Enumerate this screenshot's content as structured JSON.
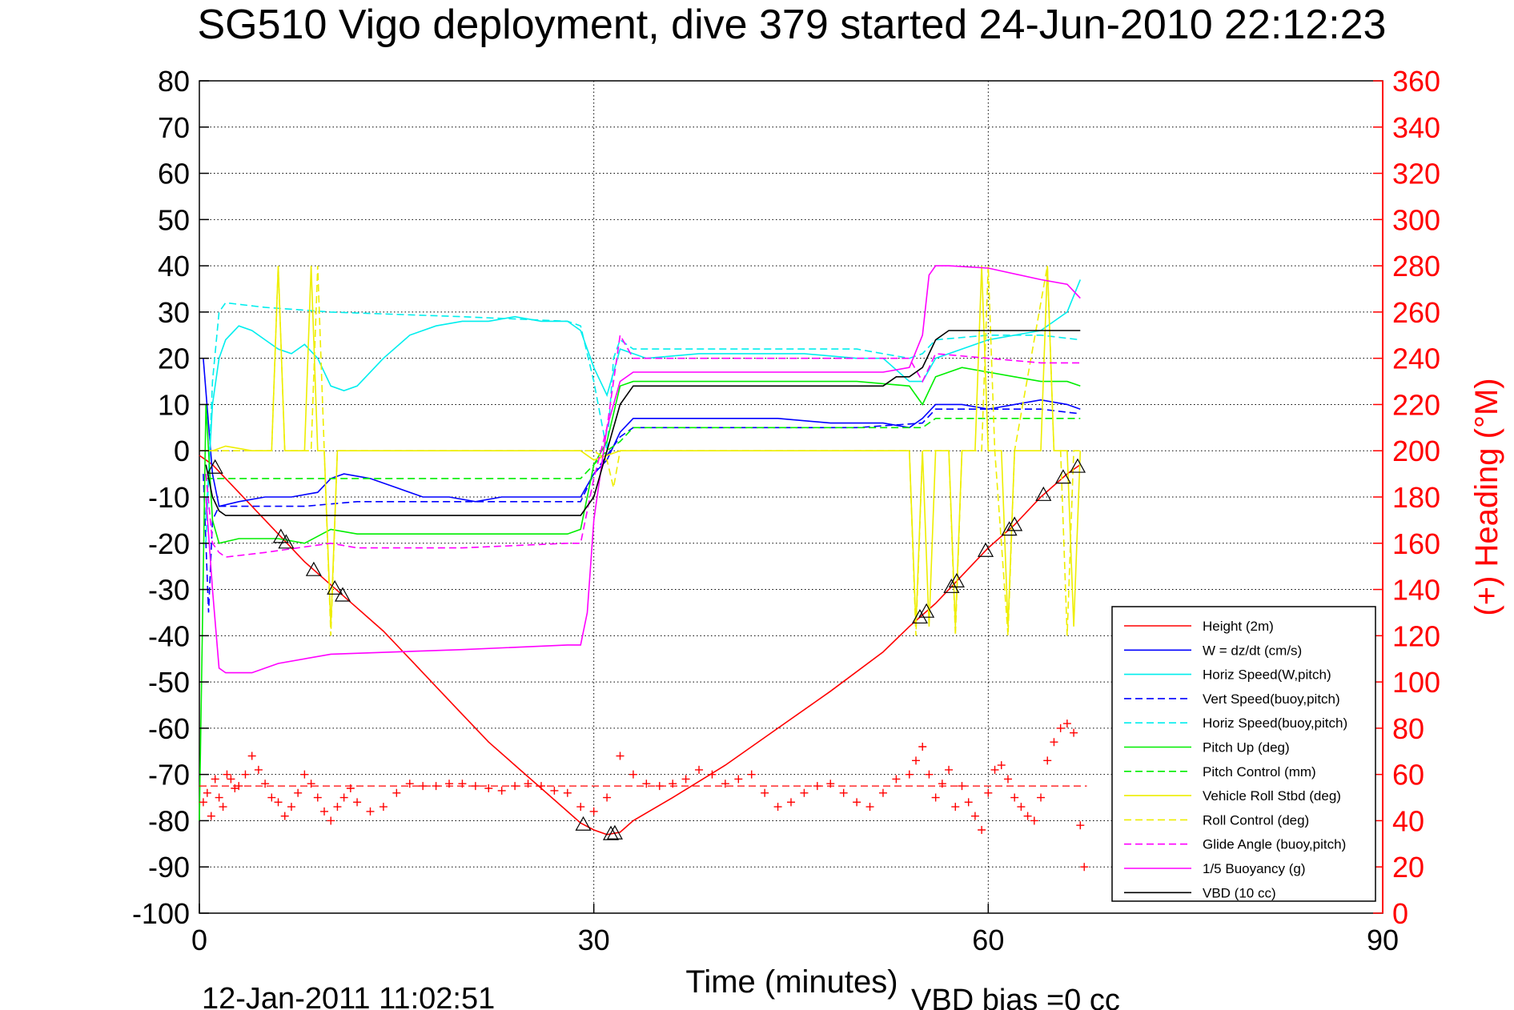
{
  "chart_data": {
    "type": "line",
    "title": "SG510 Vigo deployment, dive 379 started 24-Jun-2010 22:12:23",
    "xlabel": "Time (minutes)",
    "ylabel": "",
    "y2label": "(+) Heading (°M)",
    "xlim": [
      0,
      90
    ],
    "ylim": [
      -100,
      80
    ],
    "y2lim": [
      0,
      360
    ],
    "xticks": [
      0,
      30,
      60,
      90
    ],
    "yticks": [
      80,
      70,
      60,
      50,
      40,
      30,
      20,
      10,
      0,
      -10,
      -20,
      -30,
      -40,
      -50,
      -60,
      -70,
      -80,
      -90,
      -100
    ],
    "y2ticks": [
      360,
      340,
      320,
      300,
      280,
      260,
      240,
      220,
      200,
      180,
      160,
      140,
      120,
      100,
      80,
      60,
      40,
      20,
      0
    ],
    "grid": true,
    "legend_position": "bottom-right",
    "footer_left": "12-Jan-2011 11:02:51",
    "footer_right": "VBD bias =0 cc",
    "series": [
      {
        "name": "Height (2m)",
        "color": "#ff0000",
        "dash": "solid",
        "x": [
          0,
          1,
          2,
          4,
          6,
          8,
          10,
          12,
          14,
          16,
          18,
          20,
          22,
          24,
          26,
          28,
          29,
          30,
          31,
          32,
          33,
          36,
          40,
          44,
          48,
          52,
          54,
          56,
          58,
          60,
          62,
          64,
          66,
          67
        ],
        "y": [
          -1,
          -3,
          -6,
          -12,
          -18,
          -24,
          -29,
          -34,
          -39,
          -45,
          -51,
          -57,
          -63,
          -68,
          -73,
          -78,
          -80.5,
          -82,
          -83,
          -82.5,
          -80,
          -75,
          -68,
          -60,
          -52,
          -43.5,
          -38,
          -33,
          -27,
          -21,
          -16,
          -10,
          -5,
          -3
        ]
      },
      {
        "name": "W = dz/dt (cm/s)",
        "color": "#0000ff",
        "dash": "solid",
        "x": [
          0.3,
          1,
          1.5,
          3,
          5,
          7,
          9,
          10,
          11,
          13,
          15,
          17,
          19,
          21,
          23,
          25,
          27,
          29,
          30,
          31,
          32,
          33,
          36,
          40,
          44,
          48,
          52,
          54,
          55,
          56,
          58,
          60,
          62,
          64,
          66,
          67
        ],
        "y": [
          20,
          -5,
          -12,
          -11,
          -10,
          -10,
          -9,
          -6,
          -5,
          -6,
          -8,
          -10,
          -10,
          -11,
          -10,
          -10,
          -10,
          -10,
          -5,
          -2,
          4,
          7,
          7,
          7,
          7,
          6,
          6,
          5,
          7,
          10,
          10,
          9,
          10,
          11,
          10,
          9
        ]
      },
      {
        "name": "Horiz Speed(W,pitch)",
        "color": "#00eeee",
        "dash": "solid",
        "x": [
          0.5,
          1,
          1.5,
          2,
          3,
          4,
          5,
          6,
          7,
          8,
          9,
          10,
          11,
          12,
          14,
          16,
          18,
          20,
          22,
          24,
          26,
          28,
          29,
          30,
          31,
          32,
          34,
          38,
          42,
          46,
          50,
          52,
          54,
          55,
          56,
          58,
          60,
          62,
          64,
          66,
          67
        ],
        "y": [
          -15,
          10,
          20,
          24,
          27,
          26,
          24,
          22,
          21,
          23,
          20,
          14,
          13,
          14,
          20,
          25,
          27,
          28,
          28,
          29,
          28,
          28,
          26,
          18,
          12,
          22,
          20,
          21,
          21,
          21,
          20,
          20,
          15,
          15,
          20,
          22,
          24,
          25,
          26,
          30,
          37
        ]
      },
      {
        "name": "Vert Speed(buoy,pitch)",
        "color": "#0000ff",
        "dash": "dash",
        "x": [
          0.3,
          0.7,
          1,
          1.5,
          3,
          8,
          12,
          20,
          28,
          29,
          30,
          31,
          32,
          33,
          40,
          50,
          55,
          56,
          60,
          64,
          67
        ],
        "y": [
          -5,
          -35,
          -15,
          -12,
          -12,
          -12,
          -11,
          -11,
          -11,
          -11,
          -5,
          -1,
          3,
          5,
          5,
          5,
          6,
          9,
          9,
          9,
          8
        ]
      },
      {
        "name": "Horiz Speed(buoy,pitch)",
        "color": "#00eeee",
        "dash": "dash",
        "x": [
          0.5,
          1,
          1.5,
          2,
          5,
          10,
          20,
          28,
          29,
          30,
          31,
          31.5,
          32,
          33,
          40,
          50,
          54,
          55,
          56,
          60,
          64,
          67
        ],
        "y": [
          -20,
          15,
          30,
          32,
          31,
          30,
          29,
          28,
          27,
          15,
          0,
          20,
          24,
          22,
          22,
          22,
          20,
          21,
          24,
          25,
          25,
          24
        ]
      },
      {
        "name": "Pitch Up (deg)",
        "color": "#00ee00",
        "dash": "solid",
        "x": [
          0,
          0.5,
          1,
          1.5,
          3,
          6,
          8,
          10,
          12,
          20,
          28,
          29,
          30,
          31,
          32,
          33,
          40,
          50,
          54,
          55,
          56,
          58,
          60,
          62,
          64,
          66,
          67
        ],
        "y": [
          -80,
          10,
          -15,
          -20,
          -19,
          -19,
          -20,
          -17,
          -18,
          -18,
          -18,
          -17,
          -3,
          2,
          14,
          15,
          15,
          15,
          14,
          10,
          16,
          18,
          17,
          16,
          15,
          15,
          14
        ]
      },
      {
        "name": "Pitch Control (mm)",
        "color": "#00ee00",
        "dash": "dash",
        "x": [
          0.5,
          1,
          1.5,
          5,
          10,
          20,
          29,
          30,
          31,
          32,
          33,
          40,
          50,
          54,
          55,
          56,
          60,
          64,
          67
        ],
        "y": [
          -6,
          -6,
          -6,
          -6,
          -6,
          -6,
          -6,
          -3,
          0,
          2,
          5,
          5,
          5,
          5,
          5,
          7,
          7,
          7,
          7
        ]
      },
      {
        "name": "Vehicle Roll Stbd (deg)",
        "color": "#eeee00",
        "dash": "solid",
        "x": [
          0,
          1,
          2,
          4,
          5.5,
          6,
          6.5,
          7,
          8,
          8.5,
          9,
          9.5,
          10,
          10.5,
          11,
          12,
          20,
          29,
          30,
          32,
          40,
          50,
          54,
          54.5,
          55,
          55.5,
          56,
          57,
          57.5,
          58,
          59,
          59.5,
          60,
          61,
          61.5,
          62,
          63,
          64,
          64.5,
          65,
          66,
          66.5,
          67
        ],
        "y": [
          0,
          0,
          1,
          0,
          0,
          40,
          0,
          0,
          0,
          40,
          0,
          0,
          -38,
          0,
          0,
          0,
          0,
          0,
          -2,
          0,
          0,
          0,
          0,
          -38,
          0,
          -38,
          0,
          0,
          -38,
          0,
          0,
          40,
          0,
          0,
          -38,
          0,
          0,
          0,
          40,
          0,
          0,
          -38,
          0
        ]
      },
      {
        "name": "Roll Control (deg)",
        "color": "#eeee00",
        "dash": "dash",
        "x": [
          0,
          1,
          2,
          5.5,
          6,
          6.5,
          8.5,
          9,
          9.5,
          10,
          10.5,
          11,
          20,
          29,
          30,
          31,
          31.5,
          32,
          40,
          54,
          54.5,
          55,
          57,
          57.5,
          58,
          59.5,
          60,
          60.5,
          61.5,
          62,
          64.5,
          65,
          65.5,
          66,
          66.5,
          67
        ],
        "y": [
          0,
          0,
          0,
          0,
          40,
          0,
          0,
          40,
          0,
          -40,
          0,
          0,
          0,
          0,
          0,
          -2,
          -8,
          0,
          0,
          0,
          -40,
          0,
          0,
          -40,
          0,
          0,
          40,
          0,
          -40,
          0,
          40,
          0,
          0,
          -40,
          0,
          0
        ]
      },
      {
        "name": "Glide Angle (buoy,pitch)",
        "color": "#ff00ff",
        "dash": "dash",
        "x": [
          0.5,
          1,
          1.5,
          2,
          5,
          10,
          12,
          20,
          28,
          29,
          30,
          31,
          32,
          33,
          40,
          50,
          54,
          55,
          56,
          60,
          64,
          67
        ],
        "y": [
          -5,
          -20,
          -22,
          -23,
          -22,
          -20,
          -21,
          -21,
          -20,
          -20,
          -6,
          5,
          25,
          20,
          20,
          20,
          20,
          15,
          21,
          20,
          19,
          19
        ]
      },
      {
        "name": "1/5 Buoyancy (g)",
        "color": "#ff00ff",
        "dash": "solid",
        "x": [
          0.5,
          1,
          1.5,
          2,
          4,
          6,
          10,
          20,
          28,
          29,
          29.5,
          30,
          31,
          32,
          33,
          40,
          50,
          52,
          54,
          55,
          55.5,
          56,
          57,
          60,
          64,
          66,
          67
        ],
        "y": [
          -10,
          -30,
          -47,
          -48,
          -48,
          -46,
          -44,
          -43,
          -42,
          -42,
          -35,
          -15,
          5,
          15,
          17,
          17,
          17,
          17,
          18,
          25,
          38,
          40,
          40,
          39.5,
          37,
          36,
          33
        ]
      },
      {
        "name": "VBD (10 cc)",
        "color": "#000000",
        "dash": "solid",
        "x": [
          0.5,
          1,
          1.5,
          2,
          10,
          20,
          29,
          30,
          31,
          32,
          33,
          40,
          50,
          52,
          53,
          54,
          55,
          56,
          57,
          58,
          60,
          64,
          67
        ],
        "y": [
          -3,
          -10,
          -13,
          -14,
          -14,
          -14,
          -14,
          -10,
          0,
          10,
          14,
          14,
          14,
          14,
          16,
          16,
          18,
          24,
          26,
          26,
          26,
          26,
          26
        ]
      }
    ],
    "heading": {
      "name": "(+) Heading",
      "color": "#ff0000",
      "mean": 55,
      "x": [
        0.3,
        0.6,
        0.9,
        1.2,
        1.5,
        1.8,
        2.1,
        2.4,
        2.7,
        3,
        3.5,
        4,
        4.5,
        5,
        5.5,
        6,
        6.5,
        7,
        7.5,
        8,
        8.5,
        9,
        9.5,
        10,
        10.5,
        11,
        11.5,
        12,
        13,
        14,
        15,
        16,
        17,
        18,
        19,
        20,
        21,
        22,
        23,
        24,
        25,
        26,
        27,
        28,
        29,
        30,
        31,
        32,
        33,
        34,
        35,
        36,
        37,
        38,
        39,
        40,
        41,
        42,
        43,
        44,
        45,
        46,
        47,
        48,
        49,
        50,
        51,
        52,
        53,
        54,
        54.5,
        55,
        55.5,
        56,
        56.5,
        57,
        57.5,
        58,
        58.5,
        59,
        59.5,
        60,
        60.5,
        61,
        61.5,
        62,
        62.5,
        63,
        63.5,
        64,
        64.5,
        65,
        65.5,
        66,
        66.5,
        67,
        67.3
      ],
      "y": [
        48,
        52,
        42,
        58,
        50,
        46,
        60,
        58,
        54,
        55,
        60,
        68,
        62,
        56,
        50,
        48,
        42,
        46,
        52,
        60,
        56,
        50,
        44,
        40,
        46,
        50,
        54,
        48,
        44,
        46,
        52,
        56,
        55,
        55,
        56,
        56,
        55,
        54,
        53,
        55,
        56,
        55,
        53,
        52,
        46,
        44,
        50,
        68,
        60,
        56,
        55,
        56,
        58,
        62,
        60,
        56,
        58,
        60,
        52,
        46,
        48,
        52,
        55,
        56,
        52,
        48,
        46,
        52,
        58,
        60,
        66,
        72,
        60,
        50,
        56,
        62,
        46,
        55,
        48,
        42,
        36,
        52,
        62,
        64,
        58,
        50,
        46,
        42,
        40,
        50,
        66,
        74,
        80,
        82,
        78,
        38,
        20
      ]
    }
  }
}
